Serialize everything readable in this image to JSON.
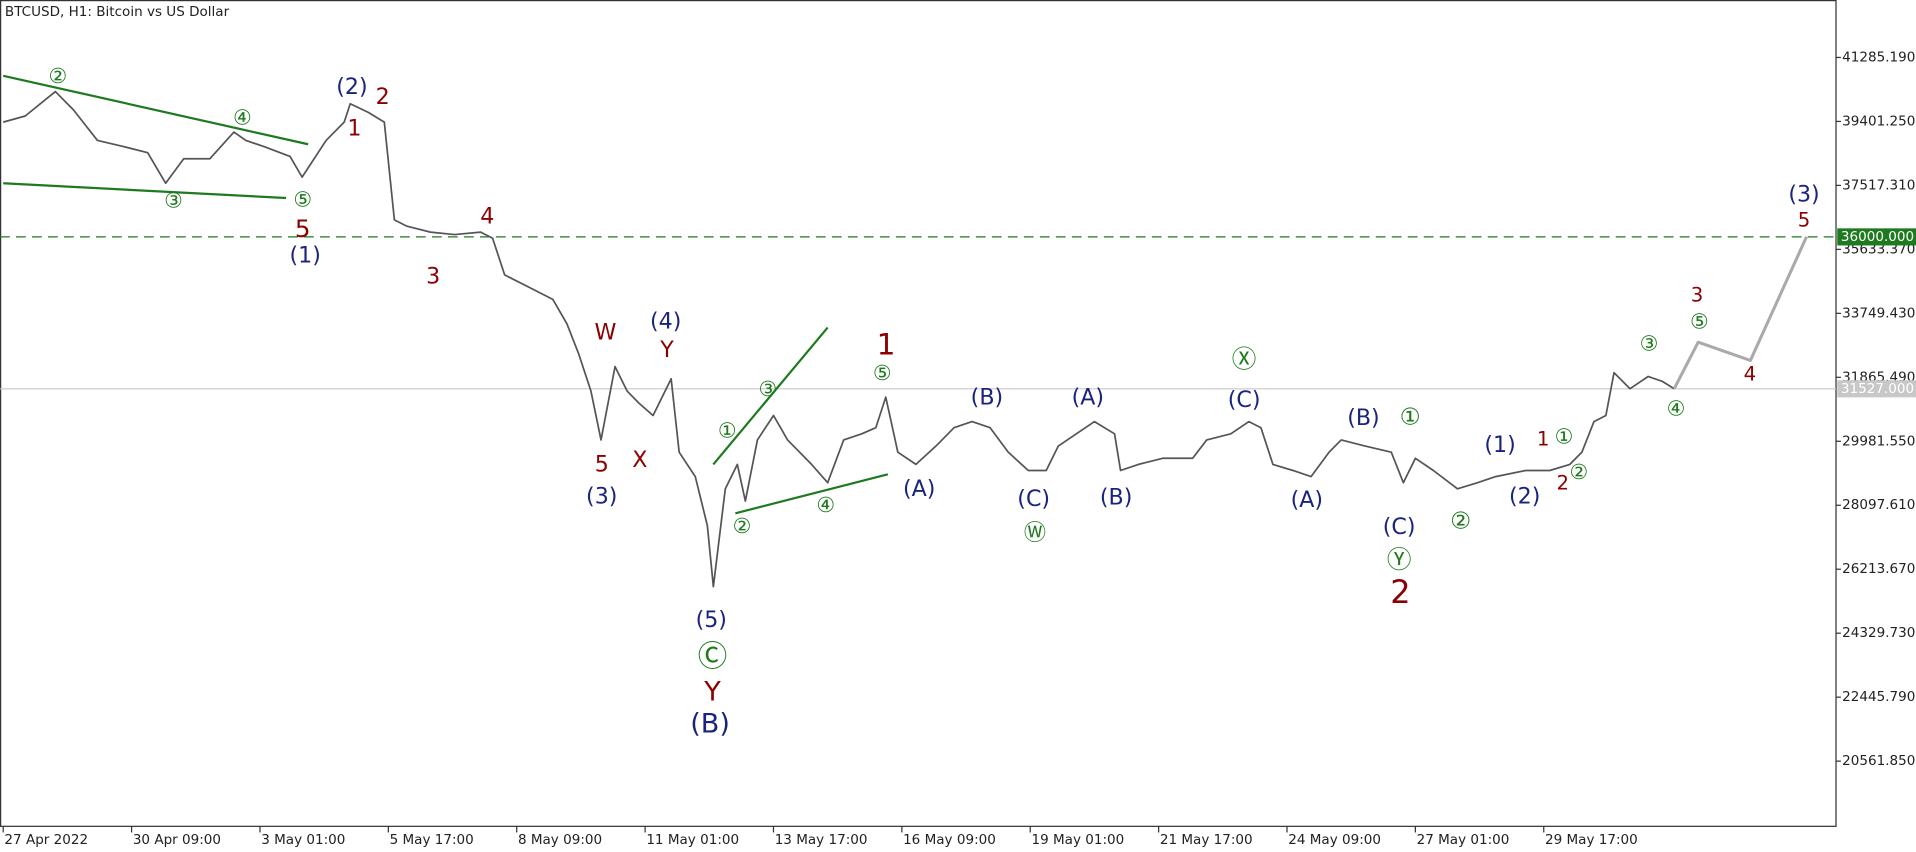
{
  "chart_data": {
    "type": "line",
    "title": "BTCUSD, H1:  Bitcoin vs US Dollar",
    "xlim": [
      15.4,
      930.7
    ],
    "ylim": [
      18642,
      42977
    ],
    "xticks": [
      {
        "value": 17,
        "label": "27 Apr 2022"
      },
      {
        "value": 81,
        "label": "30 Apr 09:00"
      },
      {
        "value": 145,
        "label": "3 May 01:00"
      },
      {
        "value": 209,
        "label": "5 May 17:00"
      },
      {
        "value": 273,
        "label": "8 May 09:00"
      },
      {
        "value": 337,
        "label": "11 May 01:00"
      },
      {
        "value": 401,
        "label": "13 May 17:00"
      },
      {
        "value": 465,
        "label": "16 May 09:00"
      },
      {
        "value": 529,
        "label": "19 May 01:00"
      },
      {
        "value": 593,
        "label": "21 May 17:00"
      },
      {
        "value": 657,
        "label": "24 May 09:00"
      },
      {
        "value": 721,
        "label": "27 May 01:00"
      },
      {
        "value": 785,
        "label": "29 May 17:00"
      }
    ],
    "yticks": [
      {
        "value": 41285.19,
        "label": "41285.190"
      },
      {
        "value": 39401.25,
        "label": "39401.250"
      },
      {
        "value": 37517.31,
        "label": "37517.310"
      },
      {
        "value": 35633.37,
        "label": "35633.370"
      },
      {
        "value": 33749.43,
        "label": "33749.430"
      },
      {
        "value": 31865.49,
        "label": "31865.490"
      },
      {
        "value": 29981.55,
        "label": "29981.550"
      },
      {
        "value": 28097.61,
        "label": "28097.610"
      },
      {
        "value": 26213.67,
        "label": "26213.670"
      },
      {
        "value": 24329.73,
        "label": "24329.730"
      },
      {
        "value": 22445.79,
        "label": "22445.790"
      },
      {
        "value": 20561.85,
        "label": "20561.850"
      }
    ],
    "series": [
      {
        "color": "#555555",
        "x": [
          17,
          28,
          43,
          52,
          64,
          77,
          89,
          98,
          107,
          120,
          132,
          138,
          147,
          160,
          166,
          178,
          187,
          190,
          199,
          207,
          212,
          218,
          230,
          242,
          255,
          261,
          267,
          279,
          291,
          298,
          304,
          310,
          315,
          322,
          328,
          334,
          341,
          350,
          354,
          362,
          368,
          371,
          377,
          383,
          387,
          393,
          401,
          408,
          420,
          428,
          436,
          445,
          452,
          457,
          463,
          472,
          482,
          491,
          500,
          509,
          518,
          528,
          537,
          543,
          552,
          561,
          571,
          574,
          583,
          595,
          610,
          617,
          629,
          638,
          644,
          650,
          660,
          669,
          678,
          684,
          696,
          709,
          715,
          721,
          730,
          742,
          752,
          761,
          776,
          788,
          798,
          804,
          810,
          816,
          820,
          828,
          837,
          844,
          850
        ],
        "values": [
          39380,
          39560,
          40280,
          39740,
          38840,
          38660,
          38480,
          37580,
          38300,
          38300,
          39090,
          38840,
          38660,
          38370,
          37760,
          38840,
          39380,
          39920,
          39670,
          39380,
          36500,
          36320,
          36140,
          36070,
          36140,
          35960,
          34880,
          34520,
          34160,
          33440,
          32540,
          31460,
          30020,
          32180,
          31460,
          31100,
          30740,
          31820,
          29660,
          28940,
          27500,
          25700,
          28580,
          29300,
          28220,
          30020,
          30740,
          30020,
          29300,
          28760,
          30020,
          30200,
          30380,
          31280,
          29660,
          29300,
          29840,
          30380,
          30560,
          30380,
          29660,
          29120,
          29120,
          29840,
          30200,
          30560,
          30200,
          29120,
          29300,
          29480,
          29480,
          30020,
          30200,
          30560,
          30380,
          29300,
          29120,
          28940,
          29660,
          30020,
          29840,
          29660,
          28760,
          29480,
          29120,
          28580,
          28760,
          28940,
          29120,
          29120,
          29300,
          29660,
          30560,
          30740,
          32000,
          31530,
          31890,
          31750,
          31530
        ]
      },
      {
        "color": "#aaaaaa",
        "x": [
          850,
          862,
          888,
          916
        ],
        "values": [
          31530,
          32900,
          32360,
          36000
        ]
      }
    ],
    "hlines": [
      {
        "value": 36000,
        "label": "36000.000",
        "color": "#1e7a1e",
        "style": "dashed"
      },
      {
        "value": 31527,
        "label": "31527.000",
        "color": "#c8c8c8",
        "style": "solid"
      }
    ],
    "trendlines": [
      {
        "x": [
          17,
          169
        ],
        "values": [
          40745,
          38729
        ]
      },
      {
        "x": [
          17,
          158
        ],
        "values": [
          37580,
          37145
        ]
      },
      {
        "x": [
          371,
          428
        ],
        "values": [
          29300,
          33330
        ]
      },
      {
        "x": [
          382,
          458
        ],
        "values": [
          27860,
          29010
        ]
      }
    ],
    "trendline_color": "#1e7a1e",
    "annotations": [
      {
        "text": "②",
        "color": "#1e7a1e"
      },
      {
        "text": "④",
        "color": "#1e7a1e"
      },
      {
        "text": "③",
        "color": "#1e7a1e"
      },
      {
        "text": "⑤",
        "color": "#1e7a1e"
      },
      {
        "text": "③",
        "color": "#1e7a1e"
      },
      {
        "text": "①",
        "color": "#1e7a1e"
      },
      {
        "text": "②",
        "color": "#1e7a1e"
      },
      {
        "text": "④",
        "color": "#1e7a1e"
      },
      {
        "text": "⑤",
        "color": "#1e7a1e"
      },
      {
        "text": "Ⓦ",
        "color": "#1e7a1e"
      },
      {
        "text": "Ⓧ",
        "color": "#1e7a1e"
      },
      {
        "text": "①",
        "color": "#1e7a1e"
      },
      {
        "text": "Ⓨ",
        "color": "#1e7a1e"
      },
      {
        "text": "②",
        "color": "#1e7a1e"
      },
      {
        "text": "①",
        "color": "#1e7a1e"
      },
      {
        "text": "②",
        "color": "#1e7a1e"
      },
      {
        "text": "③",
        "color": "#1e7a1e"
      },
      {
        "text": "⑤",
        "color": "#1e7a1e"
      },
      {
        "text": "④",
        "color": "#1e7a1e"
      },
      {
        "text": "Ⓒ",
        "color": "#1e7a1e"
      },
      {
        "text": "(2)",
        "color": "#1a237e"
      },
      {
        "text": "(1)",
        "color": "#1a237e"
      },
      {
        "text": "(4)",
        "color": "#1a237e"
      },
      {
        "text": "(3)",
        "color": "#1a237e"
      },
      {
        "text": "(5)",
        "color": "#1a237e"
      },
      {
        "text": "(B)",
        "color": "#1a237e"
      },
      {
        "text": "(A)",
        "color": "#1a237e"
      },
      {
        "text": "(B)",
        "color": "#1a237e"
      },
      {
        "text": "(C)",
        "color": "#1a237e"
      },
      {
        "text": "(A)",
        "color": "#1a237e"
      },
      {
        "text": "(B)",
        "color": "#1a237e"
      },
      {
        "text": "(C)",
        "color": "#1a237e"
      },
      {
        "text": "(A)",
        "color": "#1a237e"
      },
      {
        "text": "(B)",
        "color": "#1a237e"
      },
      {
        "text": "(C)",
        "color": "#1a237e"
      },
      {
        "text": "(1)",
        "color": "#1a237e"
      },
      {
        "text": "(2)",
        "color": "#1a237e"
      },
      {
        "text": "(3)",
        "color": "#1a237e"
      },
      {
        "text": "2",
        "color": "#8b0000"
      },
      {
        "text": "1",
        "color": "#8b0000"
      },
      {
        "text": "5",
        "color": "#8b0000"
      },
      {
        "text": "4",
        "color": "#8b0000"
      },
      {
        "text": "3",
        "color": "#8b0000"
      },
      {
        "text": "W",
        "color": "#8b0000"
      },
      {
        "text": "Y",
        "color": "#8b0000"
      },
      {
        "text": "5",
        "color": "#8b0000"
      },
      {
        "text": "X",
        "color": "#8b0000"
      },
      {
        "text": "Y",
        "color": "#8b0000"
      },
      {
        "text": "1",
        "color": "#8b0000"
      },
      {
        "text": "2",
        "color": "#8b0000"
      },
      {
        "text": "1",
        "color": "#8b0000"
      },
      {
        "text": "2",
        "color": "#8b0000"
      },
      {
        "text": "3",
        "color": "#8b0000"
      },
      {
        "text": "5",
        "color": "#8b0000"
      },
      {
        "text": "4",
        "color": "#8b0000"
      }
    ]
  }
}
